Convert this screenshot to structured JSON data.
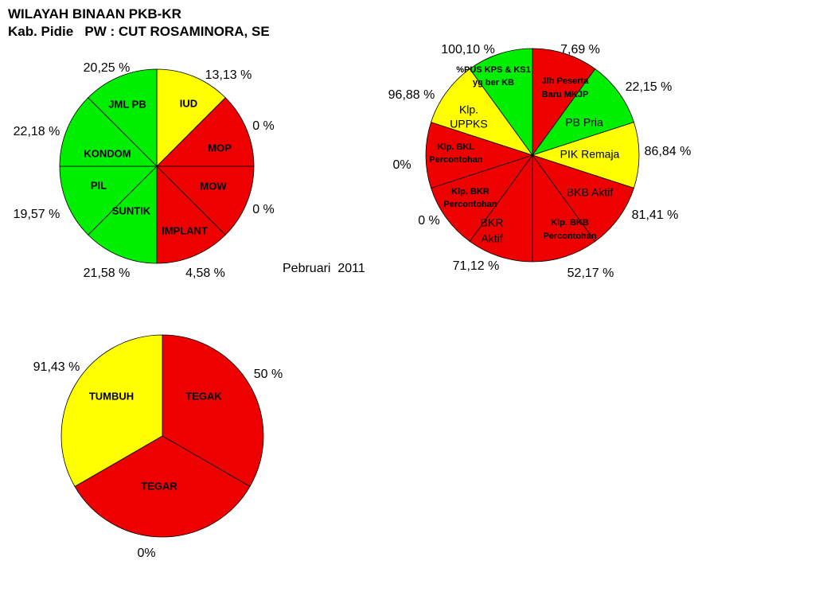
{
  "header": {
    "line1": "WILAYAH BINAAN PKB-KR",
    "line2": "Kab. Pidie   PW : CUT ROSAMINORA, SE"
  },
  "period": "Pebruari  2011",
  "colors": {
    "green": "#00ee00",
    "yellow": "#ffff00",
    "red": "#ee0000"
  },
  "chart_data": [
    {
      "type": "pie",
      "title": "",
      "segments": [
        {
          "label": "IUD",
          "pct_label": "13,13 %",
          "color": "yellow"
        },
        {
          "label": "MOP",
          "pct_label": "0 %",
          "color": "red"
        },
        {
          "label": "MOW",
          "pct_label": "0 %",
          "color": "red"
        },
        {
          "label": "IMPLANT",
          "pct_label": "4,58 %",
          "color": "red"
        },
        {
          "label": "SUNTIK",
          "pct_label": "21,58 %",
          "color": "green"
        },
        {
          "label": "PIL",
          "pct_label": "19,57 %",
          "color": "green"
        },
        {
          "label": "KONDOM",
          "pct_label": "22,18 %",
          "color": "green"
        },
        {
          "label": "JML PB",
          "pct_label": "20,25 %",
          "color": "green"
        }
      ],
      "note": "equal-size slices; colour reflects performance"
    },
    {
      "type": "pie",
      "title": "",
      "segments": [
        {
          "label": "Jlh Peserta Baru MKJP",
          "pct_label": "7,69 %",
          "color": "red"
        },
        {
          "label": "PB Pria",
          "pct_label": "22,15 %",
          "color": "green"
        },
        {
          "label": "PIK Remaja",
          "pct_label": "86,84 %",
          "color": "yellow"
        },
        {
          "label": "BKB Aktif",
          "pct_label": "81,41 %",
          "color": "red"
        },
        {
          "label": "Klp. BKB Percontohan",
          "pct_label": "52,17 %",
          "color": "red"
        },
        {
          "label": "BKR Aktif",
          "pct_label": "71,12 %",
          "color": "red"
        },
        {
          "label": "Klp. BKR Percontohan",
          "pct_label": "0 %",
          "color": "red"
        },
        {
          "label": "Klp. BKL Percontohan",
          "pct_label": "0%",
          "color": "red"
        },
        {
          "label": "Klp. UPPKS",
          "pct_label": "96,88 %",
          "color": "yellow"
        },
        {
          "label": "%PUS KPS & KS1 yg ber KB",
          "pct_label": "100,10 %",
          "color": "green"
        }
      ],
      "note": "equal-size slices; colour reflects performance"
    },
    {
      "type": "pie",
      "title": "",
      "segments": [
        {
          "label": "TEGAK",
          "pct_label": "50 %",
          "color": "red"
        },
        {
          "label": "TEGAR",
          "pct_label": "0%",
          "color": "red"
        },
        {
          "label": "TUMBUH",
          "pct_label": "91,43 %",
          "color": "yellow"
        }
      ],
      "note": "equal-size slices; colour reflects performance"
    }
  ]
}
